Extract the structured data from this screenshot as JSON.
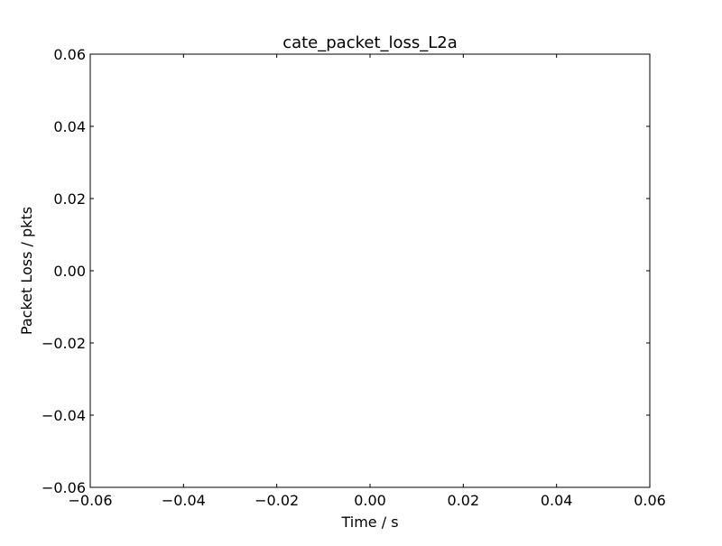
{
  "chart_data": {
    "type": "line",
    "title": "cate_packet_loss_L2a",
    "xlabel": "Time / s",
    "ylabel": "Packet Loss / pkts",
    "xlim": [
      -0.06,
      0.06
    ],
    "ylim": [
      -0.06,
      0.06
    ],
    "xticks": [
      -0.06,
      -0.04,
      -0.02,
      0.0,
      0.02,
      0.04,
      0.06
    ],
    "yticks": [
      -0.06,
      -0.04,
      -0.02,
      0.0,
      0.02,
      0.04,
      0.06
    ],
    "xtick_labels": [
      "−0.06",
      "−0.04",
      "−0.02",
      "0.00",
      "0.02",
      "0.04",
      "0.06"
    ],
    "ytick_labels": [
      "−0.06",
      "−0.04",
      "−0.02",
      "0.00",
      "0.02",
      "0.04",
      "0.06"
    ],
    "series": [],
    "grid": false,
    "colors": {
      "axes": "#000000",
      "background": "#ffffff"
    }
  }
}
